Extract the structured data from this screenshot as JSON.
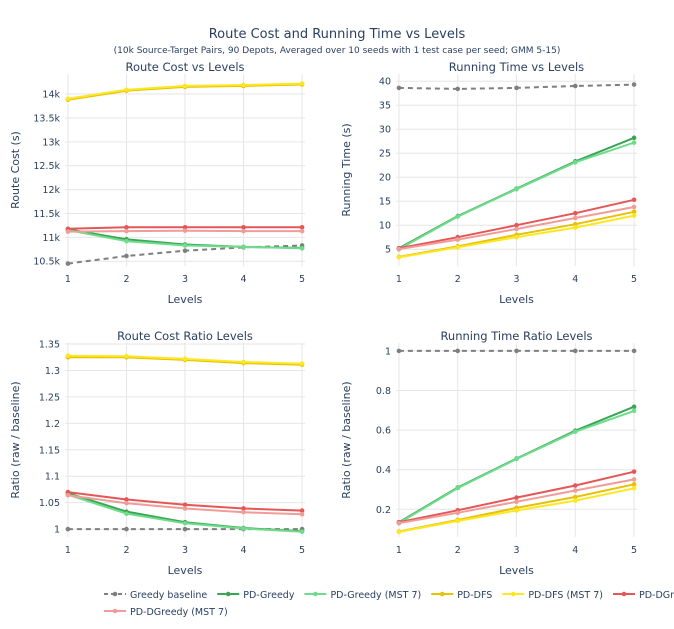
{
  "figure": {
    "title": "Route Cost and Running Time vs Levels",
    "subtitle": "(10k Source-Target Pairs, 90 Depots, Averaged over 10 seeds with 1 test case per seed; GMM 5-15)"
  },
  "series_styles": [
    {
      "name": "Greedy baseline",
      "color": "#7f7f7f",
      "dash": true
    },
    {
      "name": "PD-Greedy",
      "color": "#3aa655",
      "dash": false
    },
    {
      "name": "PD-Greedy (MST 7)",
      "color": "#6fdc8c",
      "dash": false
    },
    {
      "name": "PD-DFS",
      "color": "#e6c200",
      "dash": false
    },
    {
      "name": "PD-DFS (MST 7)",
      "color": "#fde725",
      "dash": false
    },
    {
      "name": "PD-DGreedy",
      "color": "#e45756",
      "dash": false
    },
    {
      "name": "PD-DGreedy (MST 7)",
      "color": "#f19c99",
      "dash": false
    }
  ],
  "chart_data": [
    {
      "type": "line",
      "title": "Route Cost vs Levels",
      "xlabel": "Levels",
      "ylabel": "Route Cost (s)",
      "x": [
        1,
        2,
        3,
        4,
        5
      ],
      "xlim": [
        0.95,
        5.05
      ],
      "ylim": [
        10400,
        14420
      ],
      "yticks": [
        10500,
        11000,
        11500,
        12000,
        12500,
        13000,
        13500,
        14000
      ],
      "ytick_labels": [
        "10.5k",
        "11k",
        "11.5k",
        "12k",
        "12.5k",
        "13k",
        "13.5k",
        "14k"
      ],
      "series": [
        {
          "name": "Greedy baseline",
          "values": [
            10450,
            10610,
            10720,
            10790,
            10830
          ]
        },
        {
          "name": "PD-Greedy",
          "values": [
            11170,
            10960,
            10850,
            10800,
            10780
          ]
        },
        {
          "name": "PD-Greedy (MST 7)",
          "values": [
            11150,
            10920,
            10830,
            10800,
            10770
          ]
        },
        {
          "name": "PD-DFS",
          "values": [
            13880,
            14070,
            14150,
            14170,
            14200
          ]
        },
        {
          "name": "PD-DFS (MST 7)",
          "values": [
            13900,
            14090,
            14170,
            14190,
            14220
          ]
        },
        {
          "name": "PD-DGreedy",
          "values": [
            11180,
            11210,
            11210,
            11210,
            11210
          ]
        },
        {
          "name": "PD-DGreedy (MST 7)",
          "values": [
            11120,
            11130,
            11140,
            11130,
            11130
          ]
        }
      ]
    },
    {
      "type": "line",
      "title": "Running Time vs Levels",
      "xlabel": "Levels",
      "ylabel": "Running Time (s)",
      "x": [
        1,
        2,
        3,
        4,
        5
      ],
      "xlim": [
        0.95,
        5.05
      ],
      "ylim": [
        1.5,
        41.5
      ],
      "yticks": [
        5,
        10,
        15,
        20,
        25,
        30,
        35,
        40
      ],
      "ytick_labels": [
        "5",
        "10",
        "15",
        "20",
        "25",
        "30",
        "35",
        "40"
      ],
      "series": [
        {
          "name": "Greedy baseline",
          "values": [
            38.6,
            38.4,
            38.6,
            39.0,
            39.3
          ]
        },
        {
          "name": "PD-Greedy",
          "values": [
            5.2,
            11.9,
            17.6,
            23.3,
            28.2
          ]
        },
        {
          "name": "PD-Greedy (MST 7)",
          "values": [
            5.0,
            11.8,
            17.5,
            23.1,
            27.2
          ]
        },
        {
          "name": "PD-DFS",
          "values": [
            3.4,
            5.6,
            8.0,
            10.2,
            12.8
          ]
        },
        {
          "name": "PD-DFS (MST 7)",
          "values": [
            3.3,
            5.4,
            7.5,
            9.5,
            12.0
          ]
        },
        {
          "name": "PD-DGreedy",
          "values": [
            5.2,
            7.5,
            10.0,
            12.5,
            15.3
          ]
        },
        {
          "name": "PD-DGreedy (MST 7)",
          "values": [
            5.0,
            7.0,
            9.2,
            11.5,
            13.8
          ]
        }
      ]
    },
    {
      "type": "line",
      "title": "Route Cost Ratio Levels",
      "xlabel": "Levels",
      "ylabel": "Ratio (raw / baseline)",
      "x": [
        1,
        2,
        3,
        4,
        5
      ],
      "xlim": [
        0.95,
        5.05
      ],
      "ylim": [
        0.985,
        1.352
      ],
      "yticks": [
        1,
        1.05,
        1.1,
        1.15,
        1.2,
        1.25,
        1.3,
        1.35
      ],
      "ytick_labels": [
        "1",
        "1.05",
        "1.1",
        "1.15",
        "1.2",
        "1.25",
        "1.3",
        "1.35"
      ],
      "series": [
        {
          "name": "Greedy baseline",
          "values": [
            1.0,
            1.0,
            1.0,
            1.0,
            1.0
          ]
        },
        {
          "name": "PD-Greedy",
          "values": [
            1.068,
            1.033,
            1.013,
            1.002,
            0.996
          ]
        },
        {
          "name": "PD-Greedy (MST 7)",
          "values": [
            1.065,
            1.029,
            1.011,
            1.001,
            0.995
          ]
        },
        {
          "name": "PD-DFS",
          "values": [
            1.325,
            1.325,
            1.32,
            1.314,
            1.311
          ]
        },
        {
          "name": "PD-DFS (MST 7)",
          "values": [
            1.328,
            1.327,
            1.322,
            1.316,
            1.313
          ]
        },
        {
          "name": "PD-DGreedy",
          "values": [
            1.07,
            1.056,
            1.046,
            1.039,
            1.035
          ]
        },
        {
          "name": "PD-DGreedy (MST 7)",
          "values": [
            1.064,
            1.049,
            1.039,
            1.032,
            1.028
          ]
        }
      ]
    },
    {
      "type": "line",
      "title": "Running Time Ratio Levels",
      "xlabel": "Levels",
      "ylabel": "Ratio (raw / baseline)",
      "x": [
        1,
        2,
        3,
        4,
        5
      ],
      "xlim": [
        0.95,
        5.05
      ],
      "ylim": [
        0.06,
        1.04
      ],
      "yticks": [
        0.2,
        0.4,
        0.6,
        0.8,
        1
      ],
      "ytick_labels": [
        "0.2",
        "0.4",
        "0.6",
        "0.8",
        "1"
      ],
      "series": [
        {
          "name": "Greedy baseline",
          "values": [
            1.0,
            1.0,
            1.0,
            1.0,
            1.0
          ]
        },
        {
          "name": "PD-Greedy",
          "values": [
            0.134,
            0.31,
            0.456,
            0.597,
            0.718
          ]
        },
        {
          "name": "PD-Greedy (MST 7)",
          "values": [
            0.13,
            0.307,
            0.454,
            0.592,
            0.697
          ]
        },
        {
          "name": "PD-DFS",
          "values": [
            0.088,
            0.146,
            0.207,
            0.262,
            0.326
          ]
        },
        {
          "name": "PD-DFS (MST 7)",
          "values": [
            0.086,
            0.141,
            0.194,
            0.244,
            0.306
          ]
        },
        {
          "name": "PD-DGreedy",
          "values": [
            0.135,
            0.195,
            0.259,
            0.32,
            0.39
          ]
        },
        {
          "name": "PD-DGreedy (MST 7)",
          "values": [
            0.13,
            0.182,
            0.238,
            0.295,
            0.351
          ]
        }
      ]
    }
  ]
}
